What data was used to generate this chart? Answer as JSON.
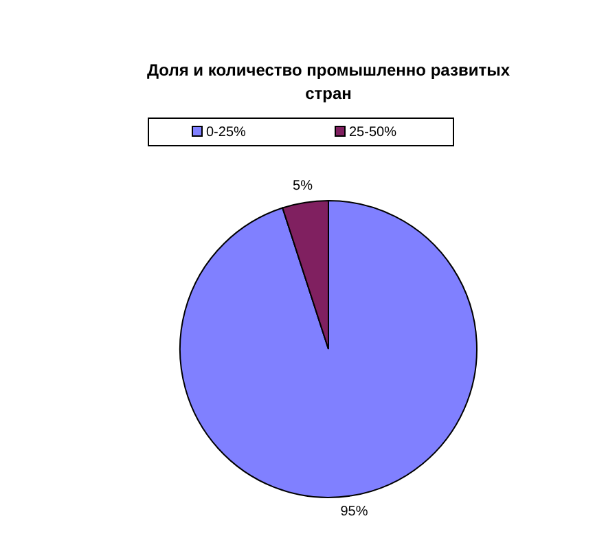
{
  "chart_data": {
    "type": "pie",
    "title": "Доля и количество промышленно развитых стран",
    "categories": [
      "0-25%",
      "25-50%"
    ],
    "values": [
      95,
      5
    ],
    "colors": [
      "#8080ff",
      "#802060"
    ],
    "value_labels": [
      "95%",
      "5%"
    ],
    "legend": "top"
  }
}
